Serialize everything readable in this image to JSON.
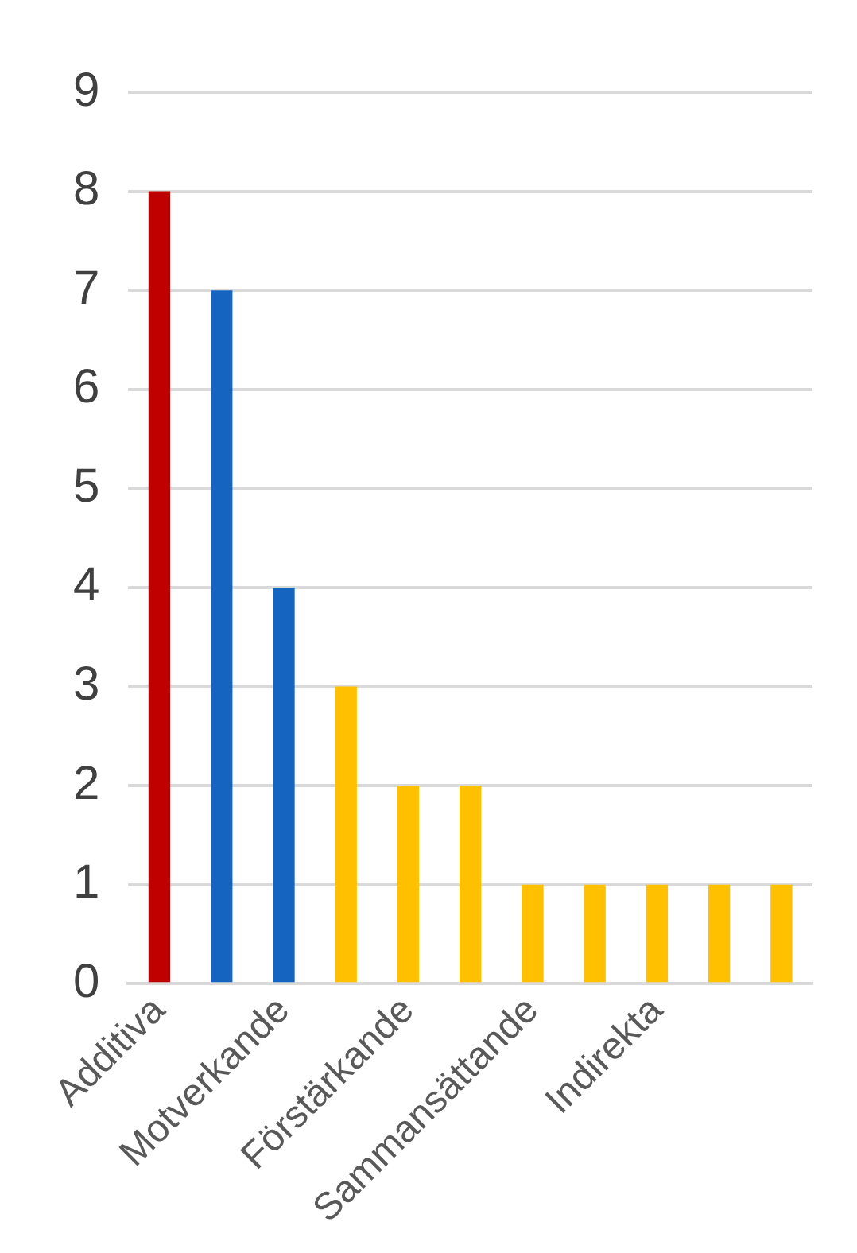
{
  "chart_data": {
    "type": "bar",
    "categories": [
      "Additiva",
      null,
      "Motverkande",
      null,
      "Förstärkande",
      null,
      "Sammansättande",
      null,
      "Indirekta",
      null,
      null
    ],
    "values": [
      8,
      7,
      4,
      3,
      2,
      2,
      1,
      1,
      1,
      1,
      1
    ],
    "colors": [
      "#c00000",
      "#1565c0",
      "#1565c0",
      "#ffc000",
      "#ffc000",
      "#ffc000",
      "#ffc000",
      "#ffc000",
      "#ffc000",
      "#ffc000",
      "#ffc000"
    ],
    "ylim": [
      0,
      9
    ],
    "yticks": [
      0,
      1,
      2,
      3,
      4,
      5,
      6,
      7,
      8,
      9
    ],
    "grid": "y"
  }
}
